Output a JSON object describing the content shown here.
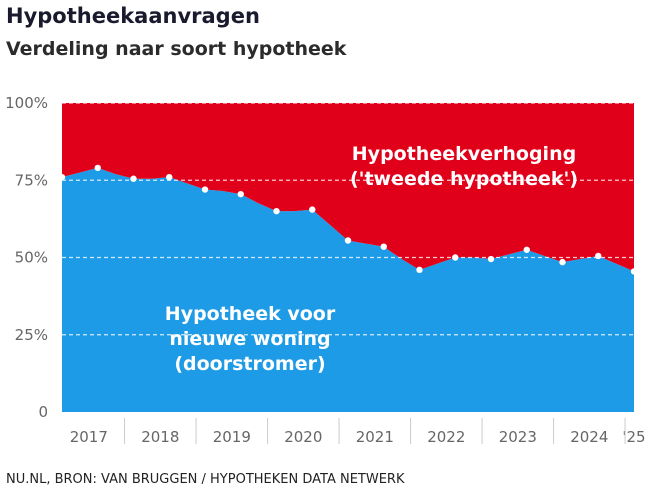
{
  "header": {
    "title": "Hypotheekaanvragen",
    "subtitle": "Verdeling naar soort hypotheek"
  },
  "footer": {
    "source": "NU.NL, BRON: VAN BRUGGEN / HYPOTHEKEN DATA NETWERK"
  },
  "colors": {
    "top_area": "#e1001a",
    "bottom_area": "#1e9be6",
    "grid": "#ffffff",
    "points": "#ffffff",
    "tick_text": "#666666"
  },
  "chart_data": {
    "type": "area",
    "stacked": true,
    "percent_scale": true,
    "x_unit": "quarter",
    "x": [
      "2017-Q1",
      "2017-Q2",
      "2017-Q3",
      "2017-Q4",
      "2018-Q1",
      "2018-Q2",
      "2018-Q3",
      "2018-Q4",
      "2019-Q1",
      "2019-Q2",
      "2019-Q3",
      "2019-Q4",
      "2020-Q1",
      "2020-Q2",
      "2020-Q3",
      "2020-Q4",
      "2021-Q1",
      "2021-Q2",
      "2021-Q3",
      "2021-Q4",
      "2022-Q1",
      "2022-Q2",
      "2022-Q3",
      "2022-Q4",
      "2023-Q1",
      "2023-Q2",
      "2023-Q3",
      "2023-Q4",
      "2024-Q1",
      "2024-Q2",
      "2024-Q3",
      "2024-Q4",
      "2025-Q1"
    ],
    "series": [
      {
        "name": "Hypotheek voor nieuwe woning (doorstromer)",
        "color": "#1e9be6",
        "values": [
          76,
          77.5,
          79,
          77,
          75.5,
          75.5,
          76,
          74,
          72,
          71.5,
          70.5,
          67.5,
          65,
          65,
          65.5,
          60.5,
          55.5,
          54.5,
          53.5,
          49.5,
          46,
          48,
          50,
          50,
          49.5,
          51,
          52.5,
          50.5,
          48.5,
          49.5,
          50.5,
          48,
          45.5
        ]
      },
      {
        "name": "Hypotheekverhoging ('tweede hypotheek')",
        "color": "#e1001a",
        "values": [
          24,
          22.5,
          21,
          23,
          24.5,
          24.5,
          24,
          26,
          28,
          28.5,
          29.5,
          32.5,
          35,
          35,
          34.5,
          39.5,
          44.5,
          45.5,
          46.5,
          50.5,
          54,
          52,
          50,
          50,
          50.5,
          49,
          47.5,
          49.5,
          51.5,
          50.5,
          49.5,
          52,
          54.5
        ]
      }
    ],
    "marker_indices": [
      0,
      2,
      4,
      6,
      8,
      10,
      12,
      14,
      16,
      18,
      20,
      22,
      24,
      26,
      28,
      30,
      32
    ],
    "area_labels": [
      {
        "series": 0,
        "lines": [
          "Hypotheek voor",
          "nieuwe woning",
          "(doorstromer)"
        ]
      },
      {
        "series": 1,
        "lines": [
          "Hypotheekverhoging",
          "('tweede hypotheek')"
        ]
      }
    ],
    "y_ticks": [
      {
        "value": 0,
        "label": "0"
      },
      {
        "value": 25,
        "label": "25%"
      },
      {
        "value": 50,
        "label": "50%"
      },
      {
        "value": 75,
        "label": "75%"
      },
      {
        "value": 100,
        "label": "100%"
      }
    ],
    "x_ticks": [
      "2017",
      "2018",
      "2019",
      "2020",
      "2021",
      "2022",
      "2023",
      "2024",
      "'25"
    ],
    "ylim": [
      0,
      100
    ],
    "grid": true,
    "legend": "none",
    "title": "Hypotheekaanvragen",
    "subtitle": "Verdeling naar soort hypotheek",
    "xlabel": "",
    "ylabel": ""
  }
}
